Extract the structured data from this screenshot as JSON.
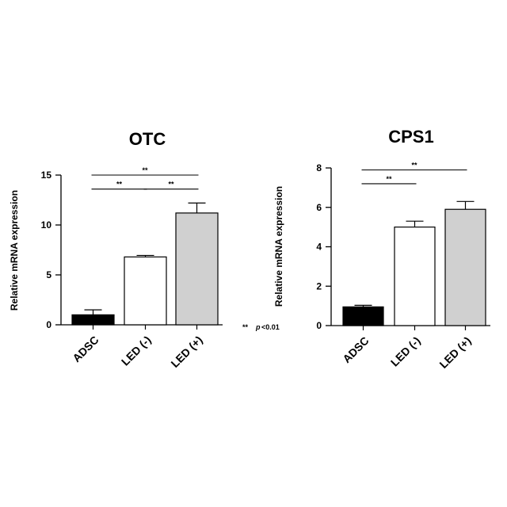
{
  "chart_data": [
    {
      "type": "bar",
      "title": "OTC",
      "ylabel": "Relative mRNA expression",
      "xlabel": "",
      "ylim": [
        0,
        15
      ],
      "yticks": [
        0,
        5,
        10,
        15
      ],
      "categories": [
        "ADSC",
        "LED (-)",
        "LED (+)"
      ],
      "values": [
        1.0,
        6.8,
        11.2
      ],
      "errors": [
        0.5,
        0.15,
        1.0
      ],
      "colors": [
        "#000000",
        "#ffffff",
        "#d0d0d0"
      ],
      "significance": [
        {
          "from": 0,
          "to": 1,
          "label": "**",
          "y": 13.6
        },
        {
          "from": 1,
          "to": 2,
          "label": "**",
          "y": 13.6
        },
        {
          "from": 0,
          "to": 2,
          "label": "**",
          "y": 15.0
        }
      ]
    },
    {
      "type": "bar",
      "title": "CPS1",
      "ylabel": "Relative mRNA expression",
      "xlabel": "",
      "ylim": [
        0,
        8
      ],
      "yticks": [
        0,
        2,
        4,
        6,
        8
      ],
      "categories": [
        "ADSC",
        "LED (-)",
        "LED (+)"
      ],
      "values": [
        0.95,
        5.0,
        5.9
      ],
      "errors": [
        0.08,
        0.3,
        0.4
      ],
      "colors": [
        "#000000",
        "#ffffff",
        "#d0d0d0"
      ],
      "significance": [
        {
          "from": 0,
          "to": 1,
          "label": "**",
          "y": 7.2
        },
        {
          "from": 0,
          "to": 2,
          "label": "**",
          "y": 7.9
        }
      ]
    }
  ],
  "footnote": {
    "stars": "**",
    "p_text": "p",
    "threshold": "<0.01"
  }
}
